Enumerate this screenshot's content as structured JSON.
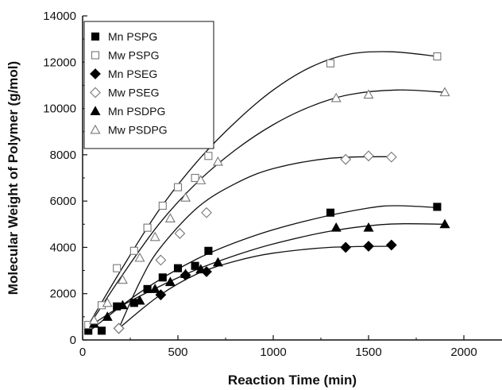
{
  "chart_data": {
    "type": "scatter",
    "xlabel": "Reaction Time (min)",
    "ylabel": "Molecular Weight of Polymer (g/mol)",
    "xlim": [
      0,
      2200
    ],
    "ylim": [
      0,
      14000
    ],
    "xticks": [
      0,
      500,
      1000,
      1500,
      2000
    ],
    "yticks": [
      0,
      2000,
      4000,
      6000,
      8000,
      10000,
      12000,
      14000
    ],
    "xtick_labels": [
      "0",
      "500",
      "1000",
      "1500",
      "2000"
    ],
    "ytick_labels": [
      "0",
      "2000",
      "4000",
      "6000",
      "8000",
      "10000",
      "12000",
      "14000"
    ],
    "grid": false,
    "legend_position": "top-left",
    "series": [
      {
        "name": "Mn PSPG",
        "marker": "square",
        "filled": true,
        "x": [
          30,
          100,
          180,
          270,
          340,
          420,
          500,
          590,
          660,
          1300,
          1860
        ],
        "y": [
          400,
          400,
          1450,
          1600,
          2200,
          2700,
          3100,
          3200,
          3850,
          5500,
          5750
        ],
        "fit": [
          [
            20,
            280
          ],
          [
            300,
            2050
          ],
          [
            600,
            3500
          ],
          [
            900,
            4500
          ],
          [
            1200,
            5200
          ],
          [
            1500,
            5700
          ],
          [
            1650,
            5800
          ],
          [
            1860,
            5720
          ]
        ]
      },
      {
        "name": "Mw PSPG",
        "marker": "square",
        "filled": false,
        "x": [
          30,
          100,
          180,
          270,
          340,
          420,
          500,
          590,
          660,
          1300,
          1860
        ],
        "y": [
          650,
          1500,
          3100,
          3850,
          4850,
          5800,
          6600,
          7000,
          7950,
          11950,
          12250
        ],
        "fit": [
          [
            20,
            500
          ],
          [
            200,
            3000
          ],
          [
            400,
            5600
          ],
          [
            600,
            7700
          ],
          [
            800,
            9400
          ],
          [
            1000,
            10800
          ],
          [
            1200,
            11800
          ],
          [
            1400,
            12350
          ],
          [
            1620,
            12450
          ],
          [
            1860,
            12250
          ]
        ]
      },
      {
        "name": "Mn PSEG",
        "marker": "diamond",
        "filled": true,
        "x": [
          190,
          410,
          540,
          650,
          1380,
          1500,
          1620
        ],
        "y": [
          500,
          1950,
          2800,
          2950,
          4000,
          4050,
          4100
        ],
        "fit": [
          [
            190,
            500
          ],
          [
            400,
            1900
          ],
          [
            600,
            2850
          ],
          [
            800,
            3400
          ],
          [
            1000,
            3750
          ],
          [
            1300,
            4000
          ],
          [
            1620,
            4050
          ]
        ]
      },
      {
        "name": "Mw PSEG",
        "marker": "diamond",
        "filled": false,
        "x": [
          190,
          410,
          510,
          650,
          1380,
          1500,
          1620
        ],
        "y": [
          500,
          3450,
          4600,
          5500,
          7800,
          7950,
          7900
        ],
        "fit": [
          [
            190,
            500
          ],
          [
            300,
            2500
          ],
          [
            400,
            3900
          ],
          [
            600,
            5700
          ],
          [
            800,
            6750
          ],
          [
            1000,
            7400
          ],
          [
            1300,
            7850
          ],
          [
            1620,
            7920
          ]
        ]
      },
      {
        "name": "Mn PSDPG",
        "marker": "triangle",
        "filled": true,
        "x": [
          60,
          130,
          210,
          300,
          380,
          460,
          540,
          620,
          710,
          1330,
          1500,
          1900
        ],
        "y": [
          700,
          1000,
          1500,
          1700,
          2200,
          2500,
          2850,
          3050,
          3350,
          4850,
          4850,
          5000
        ],
        "fit": [
          [
            20,
            500
          ],
          [
            200,
            1450
          ],
          [
            400,
            2300
          ],
          [
            600,
            3050
          ],
          [
            800,
            3650
          ],
          [
            1000,
            4150
          ],
          [
            1300,
            4700
          ],
          [
            1600,
            5000
          ],
          [
            1900,
            5000
          ]
        ]
      },
      {
        "name": "Mw PSDPG",
        "marker": "triangle",
        "filled": false,
        "x": [
          60,
          130,
          210,
          300,
          380,
          460,
          540,
          620,
          710,
          1330,
          1500,
          1900
        ],
        "y": [
          850,
          1600,
          2600,
          3550,
          4450,
          5250,
          6150,
          6900,
          7700,
          10450,
          10600,
          10700
        ],
        "fit": [
          [
            20,
            450
          ],
          [
            200,
            2700
          ],
          [
            400,
            5000
          ],
          [
            600,
            6800
          ],
          [
            800,
            8200
          ],
          [
            1000,
            9300
          ],
          [
            1200,
            10100
          ],
          [
            1400,
            10600
          ],
          [
            1650,
            10800
          ],
          [
            1900,
            10700
          ]
        ]
      }
    ]
  }
}
